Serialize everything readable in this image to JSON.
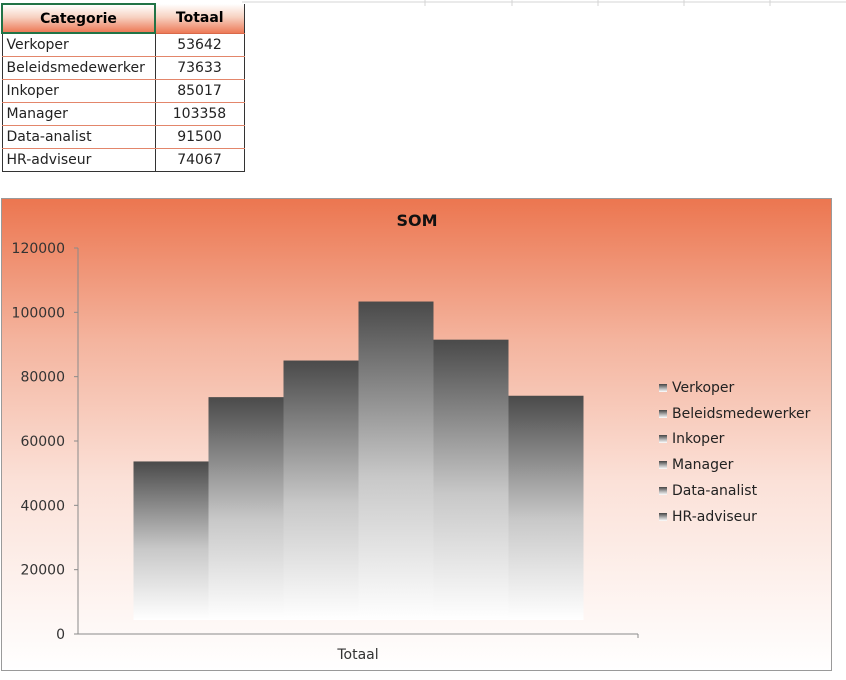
{
  "table": {
    "headers": [
      "Categorie",
      "Totaal"
    ],
    "rows": [
      {
        "label": "Verkoper",
        "value": "53642"
      },
      {
        "label": "Beleidsmedewerker",
        "value": "73633"
      },
      {
        "label": "Inkoper",
        "value": "85017"
      },
      {
        "label": "Manager",
        "value": "103358"
      },
      {
        "label": "Data-analist",
        "value": "91500"
      },
      {
        "label": "HR-adviseur",
        "value": "74067"
      }
    ]
  },
  "chart_data": {
    "type": "bar",
    "title": "SOM",
    "categories": [
      "Totaal"
    ],
    "series": [
      {
        "name": "Verkoper",
        "values": [
          53642
        ]
      },
      {
        "name": "Beleidsmedewerker",
        "values": [
          73633
        ]
      },
      {
        "name": "Inkoper",
        "values": [
          85017
        ]
      },
      {
        "name": "Manager",
        "values": [
          103358
        ]
      },
      {
        "name": "Data-analist",
        "values": [
          91500
        ]
      },
      {
        "name": "HR-adviseur",
        "values": [
          74067
        ]
      }
    ],
    "xlabel": "",
    "ylabel": "",
    "ylim": [
      0,
      120000
    ],
    "yticks": [
      "0",
      "20000",
      "40000",
      "60000",
      "80000",
      "100000",
      "120000"
    ],
    "grid": false,
    "legend": "right",
    "colors": {
      "bar_top": "#4a4a4a",
      "bar_bottom": "#ffffff",
      "background_top": "#ec7650"
    }
  }
}
